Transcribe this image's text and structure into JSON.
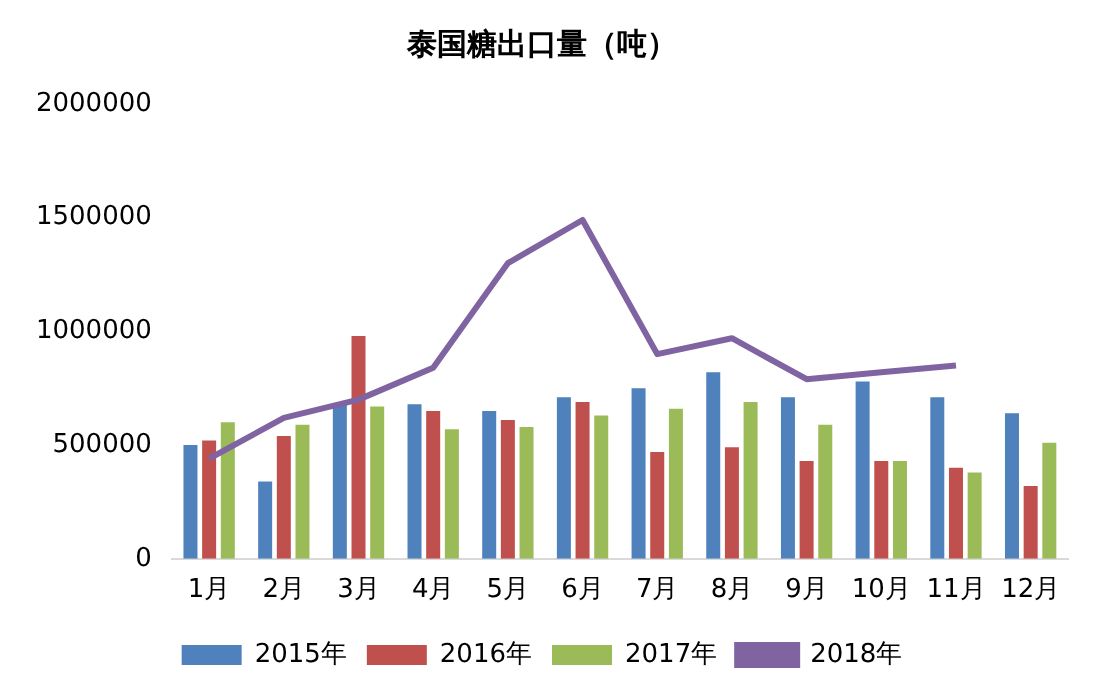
{
  "chart_data": {
    "type": "bar",
    "title": "泰国糖出口量（吨）",
    "categories": [
      "1月",
      "2月",
      "3月",
      "4月",
      "5月",
      "6月",
      "7月",
      "8月",
      "9月",
      "10月",
      "11月",
      "12月"
    ],
    "series": [
      {
        "name": "2015年",
        "color": "#4f81bd",
        "values": [
          500000,
          340000,
          680000,
          680000,
          650000,
          710000,
          750000,
          820000,
          710000,
          780000,
          710000,
          640000
        ]
      },
      {
        "name": "2016年",
        "color": "#c0504d",
        "values": [
          520000,
          540000,
          980000,
          650000,
          610000,
          690000,
          470000,
          490000,
          430000,
          430000,
          400000,
          320000
        ]
      },
      {
        "name": "2017年",
        "color": "#9bbb59",
        "values": [
          600000,
          590000,
          670000,
          570000,
          580000,
          630000,
          660000,
          690000,
          590000,
          430000,
          380000,
          510000
        ]
      },
      {
        "name": "2018年",
        "type": "line",
        "color": "#8064a2",
        "values": [
          440000,
          620000,
          700000,
          840000,
          1300000,
          1490000,
          900000,
          970000,
          790000,
          820000,
          850000,
          null
        ]
      }
    ],
    "ylim": [
      0,
      2000000
    ],
    "yticks": [
      0,
      500000,
      1000000,
      1500000,
      2000000
    ],
    "grid": false,
    "legend": "bottom",
    "marker": "none"
  }
}
